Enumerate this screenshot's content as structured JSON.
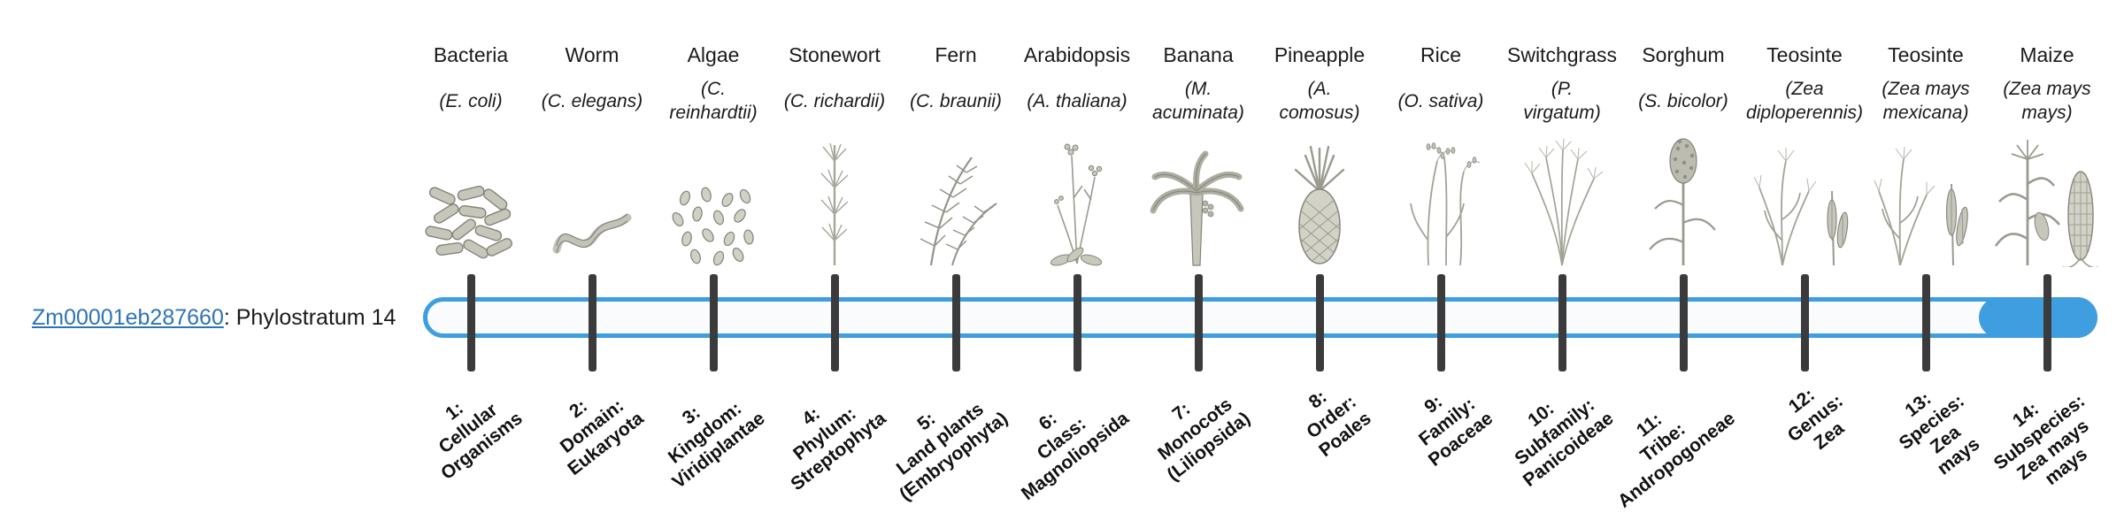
{
  "gene": {
    "link_text": "Zm00001eb287660",
    "suffix": ": Phylostratum 14"
  },
  "colors": {
    "track_blue": "#3f9ee0",
    "tick_dark": "#3b3b3b",
    "link_blue": "#2e74b5"
  },
  "track": {
    "highlighted_stratum": 14,
    "total_strata": 14
  },
  "chart_data": {
    "type": "table",
    "title": "Zm00001eb287660: Phylostratum 14",
    "legend_position": "none",
    "columns": [
      "organism",
      "scientific_name",
      "phylostratum"
    ],
    "rows": [
      [
        "Bacteria",
        "(E. coli)",
        "1: Cellular Organisms"
      ],
      [
        "Worm",
        "(C. elegans)",
        "2: Domain: Eukaryota"
      ],
      [
        "Algae",
        "(C. reinhardtii)",
        "3: Kingdom: Viridiplantae"
      ],
      [
        "Stonewort",
        "(C. richardii)",
        "4: Phylum: Streptophyta"
      ],
      [
        "Fern",
        "(C. braunii)",
        "5: Land plants (Embryophyta)"
      ],
      [
        "Arabidopsis",
        "(A. thaliana)",
        "6: Class: Magnoliopsida"
      ],
      [
        "Banana",
        "(M. acuminata)",
        "7: Monocots (Liliopsida)"
      ],
      [
        "Pineapple",
        "(A. comosus)",
        "8: Order: Poales"
      ],
      [
        "Rice",
        "(O. sativa)",
        "9: Family: Poaceae"
      ],
      [
        "Switchgrass",
        "(P. virgatum)",
        "10: Subfamily: Panicoideae"
      ],
      [
        "Sorghum",
        "(S. bicolor)",
        "11: Tribe: Andropogoneae"
      ],
      [
        "Teosinte",
        "(Zea diploperennis)",
        "12: Genus: Zea"
      ],
      [
        "Teosinte",
        "(Zea mays mexicana)",
        "13: Species: Zea mays"
      ],
      [
        "Maize",
        "(Zea mays mays)",
        "14: Subspecies: Zea mays mays"
      ]
    ]
  },
  "organisms": [
    {
      "name": "Bacteria",
      "sci_name": "(E. coli)",
      "icon": "bacteria-icon",
      "stratum": "1:\nCellular\nOrganisms"
    },
    {
      "name": "Worm",
      "sci_name": "(C. elegans)",
      "icon": "worm-icon",
      "stratum": "2:\nDomain:\nEukaryota"
    },
    {
      "name": "Algae",
      "sci_name": "(C.\nreinhardtii)",
      "icon": "algae-icon",
      "stratum": "3:\nKingdom:\nViridiplantae"
    },
    {
      "name": "Stonewort",
      "sci_name": "(C. richardii)",
      "icon": "stonewort-icon",
      "stratum": "4:\nPhylum:\nStreptophyta"
    },
    {
      "name": "Fern",
      "sci_name": "(C. braunii)",
      "icon": "fern-icon",
      "stratum": "5:\nLand plants\n(Embryophyta)"
    },
    {
      "name": "Arabidopsis",
      "sci_name": "(A. thaliana)",
      "icon": "arabidopsis-icon",
      "stratum": "6:\nClass:\nMagnoliopsida"
    },
    {
      "name": "Banana",
      "sci_name": "(M.\nacuminata)",
      "icon": "banana-icon",
      "stratum": "7:\nMonocots\n(Liliopsida)"
    },
    {
      "name": "Pineapple",
      "sci_name": "(A.\ncomosus)",
      "icon": "pineapple-icon",
      "stratum": "8:\nOrder:\nPoales"
    },
    {
      "name": "Rice",
      "sci_name": "(O. sativa)",
      "icon": "rice-icon",
      "stratum": "9:\nFamily:\nPoaceae"
    },
    {
      "name": "Switchgrass",
      "sci_name": "(P.\nvirgatum)",
      "icon": "switchgrass-icon",
      "stratum": "10:\nSubfamily:\nPanicoideae"
    },
    {
      "name": "Sorghum",
      "sci_name": "(S. bicolor)",
      "icon": "sorghum-icon",
      "stratum": "11:\nTribe:\nAndropogoneae"
    },
    {
      "name": "Teosinte",
      "sci_name": "(Zea\ndiploperennis)",
      "icon": "teosinte-diploperennis-icon",
      "stratum": "12:\nGenus:\nZea"
    },
    {
      "name": "Teosinte",
      "sci_name": "(Zea mays\nmexicana)",
      "icon": "teosinte-mexicana-icon",
      "stratum": "13:\nSpecies:\nZea\nmays"
    },
    {
      "name": "Maize",
      "sci_name": "(Zea mays\nmays)",
      "icon": "maize-icon",
      "stratum": "14:\nSubspecies:\nZea mays\nmays"
    }
  ]
}
